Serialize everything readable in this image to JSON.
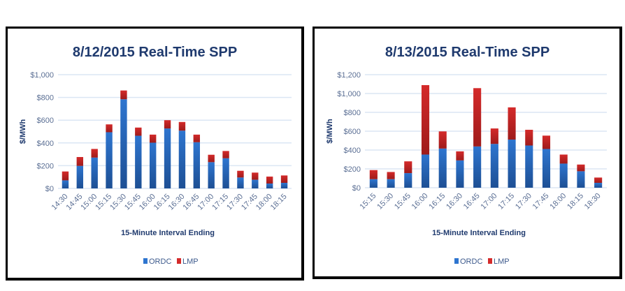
{
  "colors": {
    "ordc": "#2e75cf",
    "lmp": "#d42a2a",
    "grid": "#dbe6f4"
  },
  "chart_data": [
    {
      "type": "bar",
      "stacked": true,
      "title": "8/12/2015 Real-Time SPP",
      "xlabel": "15-Minute Interval Ending",
      "ylabel": "$/MWh",
      "ylim": [
        0,
        1000
      ],
      "yticks": [
        0,
        200,
        400,
        600,
        800,
        1000
      ],
      "ytick_labels": [
        "$0",
        "$200",
        "$400",
        "$600",
        "$800",
        "$1,000"
      ],
      "grid": true,
      "legend_position": "bottom",
      "categories": [
        "14:30",
        "14:45",
        "15:00",
        "15:15",
        "15:30",
        "15:45",
        "16:00",
        "16:15",
        "16:30",
        "16:45",
        "17:00",
        "17:15",
        "17:30",
        "17:45",
        "18:00",
        "18:15"
      ],
      "series": [
        {
          "name": "ORDC",
          "values": [
            71,
            198,
            271,
            494,
            784,
            463,
            402,
            527,
            508,
            406,
            231,
            265,
            96,
            76,
            43,
            49
          ]
        },
        {
          "name": "LMP",
          "values": [
            78,
            78,
            76,
            69,
            77,
            72,
            71,
            73,
            76,
            67,
            65,
            64,
            59,
            63,
            61,
            65
          ]
        }
      ]
    },
    {
      "type": "bar",
      "stacked": true,
      "title": "8/13/2015 Real-Time SPP",
      "xlabel": "15-Minute Interval Ending",
      "ylabel": "$/MWh",
      "ylim": [
        0,
        1200
      ],
      "yticks": [
        0,
        200,
        400,
        600,
        800,
        1000,
        1200
      ],
      "ytick_labels": [
        "$0",
        "$200",
        "$400",
        "$600",
        "$800",
        "$1,000",
        "$1,200"
      ],
      "grid": true,
      "legend_position": "bottom",
      "categories": [
        "15:15",
        "15:30",
        "15:45",
        "16:00",
        "16:15",
        "16:30",
        "16:45",
        "17:00",
        "17:15",
        "17:30",
        "17:45",
        "18:00",
        "18:15",
        "18:30"
      ],
      "series": [
        {
          "name": "ORDC",
          "values": [
            91,
            91,
            155,
            352,
            416,
            290,
            438,
            465,
            511,
            448,
            411,
            256,
            175,
            52
          ]
        },
        {
          "name": "LMP",
          "values": [
            96,
            76,
            125,
            737,
            182,
            96,
            619,
            164,
            342,
            167,
            142,
            96,
            71,
            56
          ]
        }
      ]
    }
  ]
}
